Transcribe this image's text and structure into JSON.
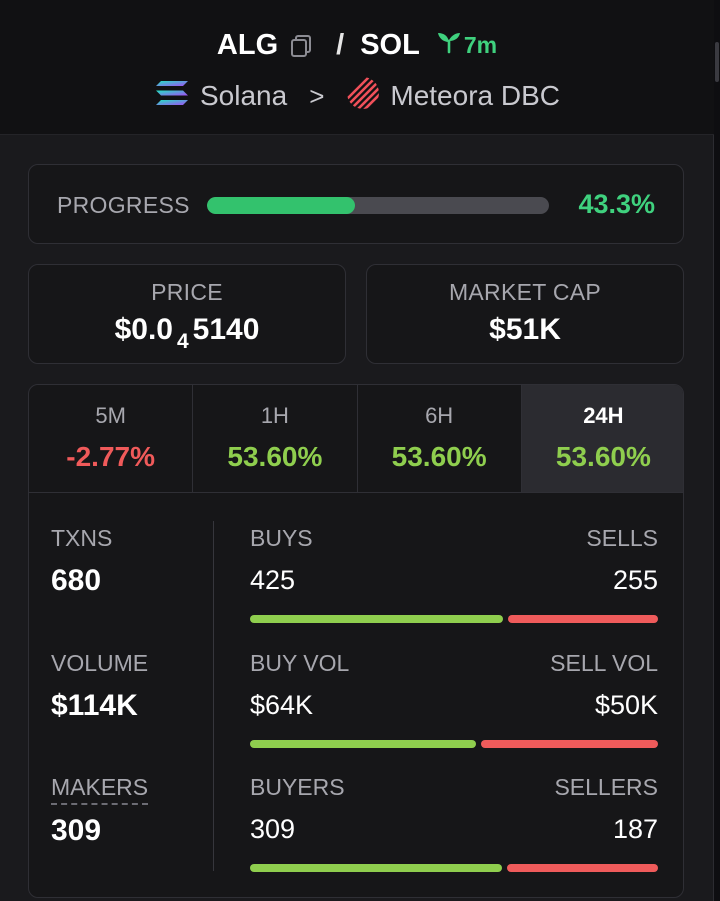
{
  "header": {
    "base_symbol": "ALG",
    "separator": "/",
    "quote_symbol": "SOL",
    "age": "7m",
    "chain": "Solana",
    "dex": "Meteora DBC",
    "chevron": ">"
  },
  "progress": {
    "label": "PROGRESS",
    "value": "43.3%",
    "fraction": 0.433
  },
  "price": {
    "label": "PRICE",
    "prefix": "$0.0",
    "zeros_count": "4",
    "digits": "5140"
  },
  "market_cap": {
    "label": "MARKET CAP",
    "value": "$51K"
  },
  "tabs": [
    {
      "label": "5M",
      "change": "-2.77%",
      "direction": "neg"
    },
    {
      "label": "1H",
      "change": "53.60%",
      "direction": "pos"
    },
    {
      "label": "6H",
      "change": "53.60%",
      "direction": "pos"
    },
    {
      "label": "24H",
      "change": "53.60%",
      "direction": "pos",
      "active": true
    }
  ],
  "metrics": {
    "txns": {
      "label": "TXNS",
      "value": "680"
    },
    "volume": {
      "label": "VOLUME",
      "value": "$114K"
    },
    "makers": {
      "label": "MAKERS",
      "value": "309"
    }
  },
  "splits": {
    "txns": {
      "left_label": "BUYS",
      "right_label": "SELLS",
      "left_value": "425",
      "right_value": "255",
      "buy_fraction": 0.625
    },
    "volume": {
      "left_label": "BUY VOL",
      "right_label": "SELL VOL",
      "left_value": "$64K",
      "right_value": "$50K",
      "buy_fraction": 0.561
    },
    "makers": {
      "left_label": "BUYERS",
      "right_label": "SELLERS",
      "left_value": "309",
      "right_value": "187",
      "buy_fraction": 0.623
    }
  },
  "colors": {
    "positive": "#8fce4e",
    "negative": "#ef5b5b",
    "progress": "#33c26d",
    "accent_green": "#3fd17e"
  },
  "icons": {
    "copy": "copy-icon",
    "sprout": "sprout-icon",
    "solana": "solana-logo-icon",
    "meteora": "meteora-logo-icon"
  }
}
